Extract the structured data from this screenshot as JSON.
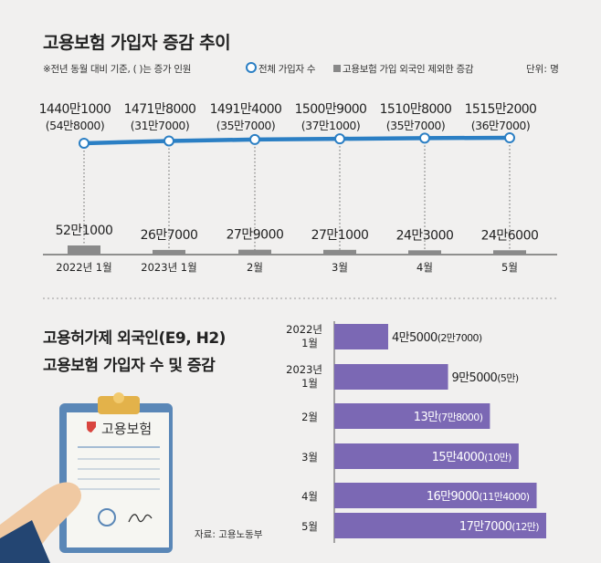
{
  "top_chart": {
    "title": "고용보험 가입자 증감 추이",
    "note": "※전년 동월 대비 기준, ( )는 증가 인원",
    "legend": [
      {
        "label": "전체 가입자 수",
        "marker": "circle",
        "color": "#2b7fc4"
      },
      {
        "label": "고용보험 가입 외국인 제외한 증감",
        "marker": "square",
        "color": "#888888"
      }
    ],
    "unit": "단위: 명"
  },
  "bottom_chart": {
    "title_line1": "고용허가제 외국인(E9, H2)",
    "title_line2": "고용보험 가입자 수 및 증감"
  },
  "illustration": {
    "clipboard_label": "고용보험"
  },
  "source": "자료: 고용노동부",
  "colors": {
    "line": "#2b7fc4",
    "gray_bar": "#8a8a8a",
    "purple_bar": "#7b68b4",
    "background": "#f1f0ef"
  },
  "chart_data": [
    {
      "type": "line",
      "categories": [
        "2022년 1월",
        "2023년 1월",
        "2월",
        "3월",
        "4월",
        "5월"
      ],
      "series": [
        {
          "name": "전체 가입자 수",
          "values": [
            14401000,
            14718000,
            14914000,
            15009000,
            15108000,
            15152000
          ],
          "labels": [
            "1440만1000",
            "1471만8000",
            "1491만4000",
            "1500만9000",
            "1510만8000",
            "1515만2000"
          ],
          "sublabels": [
            "(54만8000)",
            "(31만7000)",
            "(35만7000)",
            "(37만1000)",
            "(35만7000)",
            "(36만7000)"
          ]
        },
        {
          "name": "고용보험 가입 외국인 제외한 증감",
          "type": "bar",
          "values": [
            521000,
            267000,
            279000,
            271000,
            243000,
            246000
          ],
          "labels": [
            "52만1000",
            "26만7000",
            "27만9000",
            "27만1000",
            "24만3000",
            "24만6000"
          ]
        }
      ]
    },
    {
      "type": "bar",
      "orientation": "horizontal",
      "categories": [
        [
          "2022년",
          "1월"
        ],
        [
          "2023년",
          "1월"
        ],
        [
          "2월"
        ],
        [
          "3월"
        ],
        [
          "4월"
        ],
        [
          "5월"
        ]
      ],
      "values": [
        45000,
        95000,
        130000,
        154000,
        169000,
        177000
      ],
      "labels": [
        "4만5000",
        "9만5000",
        "13만",
        "15만4000",
        "16만9000",
        "17만7000"
      ],
      "increase_labels": [
        "(2만7000)",
        "(5만)",
        "(7만8000)",
        "(10만)",
        "(11만4000)",
        "(12만)"
      ],
      "increase_values": [
        27000,
        50000,
        78000,
        100000,
        114000,
        120000
      ]
    }
  ]
}
